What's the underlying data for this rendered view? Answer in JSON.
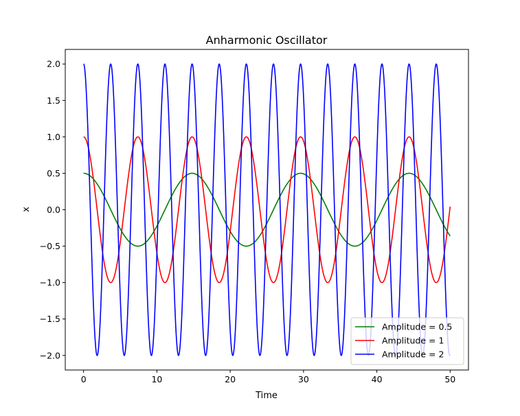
{
  "chart_data": {
    "type": "line",
    "title": "Anharmonic Oscillator",
    "xlabel": "Time",
    "ylabel": "x",
    "xlim": [
      -2.5,
      52.5
    ],
    "ylim": [
      -2.2,
      2.2
    ],
    "xticks": [
      0,
      10,
      20,
      30,
      40,
      50
    ],
    "xtick_labels": [
      "0",
      "10",
      "20",
      "30",
      "40",
      "50"
    ],
    "yticks": [
      -2.0,
      -1.5,
      -1.0,
      -0.5,
      0.0,
      0.5,
      1.0,
      1.5,
      2.0
    ],
    "ytick_labels": [
      "−2.0",
      "−1.5",
      "−1.0",
      "−0.5",
      "0.0",
      "0.5",
      "1.0",
      "1.5",
      "2.0"
    ],
    "grid": false,
    "legend_position": "lower-right",
    "series": [
      {
        "name": "Amplitude = 0.5",
        "color": "#008000",
        "amplitude": 0.5,
        "period": 14.8,
        "t_end": 50
      },
      {
        "name": "Amplitude = 1",
        "color": "#ff0000",
        "amplitude": 1.0,
        "period": 7.4,
        "t_end": 50
      },
      {
        "name": "Amplitude = 2",
        "color": "#0000ff",
        "amplitude": 2.0,
        "period": 3.7,
        "t_end": 50
      }
    ]
  }
}
